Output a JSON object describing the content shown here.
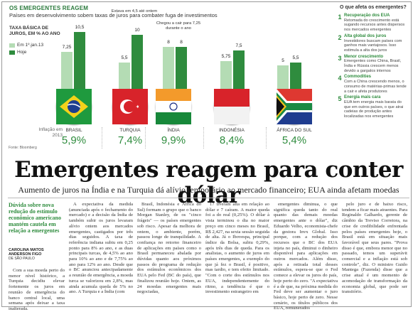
{
  "infographic": {
    "kicker": "OS EMERGENTES REAGEM",
    "subtitle": "Países em desenvolvimento sobem taxas de juros para combater fuga de investimentos",
    "ylabel": "TAXA BÁSICA DE JUROS, EM % AO ANO",
    "legend_before": "Em 1º.jan.13",
    "legend_after": "Hoje",
    "inflation_label": "Inflação em 2013",
    "source": "Fonte: Bloomberg",
    "colors": {
      "before": "#b4dcb4",
      "after": "#2f8c3e"
    }
  },
  "chart_data": {
    "type": "bar",
    "categories": [
      "BRASIL",
      "TURQUIA",
      "ÍNDIA",
      "INDONÉSIA",
      "ÁFRICA DO SUL"
    ],
    "series": [
      {
        "name": "Em 1º.jan.13",
        "values": [
          7.25,
          5.5,
          8,
          5.75,
          5
        ]
      },
      {
        "name": "Hoje",
        "values": [
          10.5,
          10,
          8,
          7.5,
          5.5
        ]
      }
    ],
    "labels_before": [
      "7,25",
      "5,5",
      "8",
      "5,75",
      "5"
    ],
    "labels_after": [
      "10,5",
      "10",
      "8",
      "7,5",
      "5,5"
    ],
    "inflation": [
      "5,9%",
      "7,4%",
      "9,9%",
      "8,4%",
      "5,4%"
    ],
    "callouts": [
      "",
      "Estava em 4,5 até ontem",
      "Chegou a cair para 7,25 durante o ano",
      "",
      ""
    ],
    "ylim": [
      0,
      11
    ]
  },
  "sidebar": {
    "title": "O que afeta os emergentes?",
    "items": [
      {
        "num": "1",
        "head": "Recuperação dos EUA",
        "text": "Retomada do crescimento está sugando recursos antes dispersos nos mercados emergentes"
      },
      {
        "num": "2",
        "head": "Alta global dos juros",
        "text": "Investidores buscam países com ganhos mais vantajosos. Isso estimula a alta dos juros"
      },
      {
        "num": "3",
        "head": "Menor crescimento",
        "text": "Emergentes como China, Brasil, Índia e Rússia crescem menos devido a gargalos internos"
      },
      {
        "num": "4",
        "head": "Commodities",
        "text": "Com a China crescendo menos, o consumo de matérias-primas tende a cair e afeta produtores"
      },
      {
        "num": "5",
        "head": "Energia mais cara",
        "text": "EUA tem energia mais barata do que em outros países, o que atrai cadeias de produção antes localizadas nos emergentes"
      }
    ]
  },
  "article": {
    "headline": "Emergentes reagem para conter dólar",
    "subhead": "Aumento de juros na Índia e na Turquia dá alívio temporário ao mercado financeiro; EUA ainda afetam moedas",
    "lead": "Dúvida sobre nova redução do estímulo econômico americano mantém cautela em relação a emergentes",
    "byline_name": "CAROLINA MATOS ANDERSON FIGO",
    "byline_place": "DE SÃO PAULO",
    "columns": [
      "Com a sua moeda perto do menor nível histórico, a Turquia decidiu elevar fortemente os juros em reunião de emergência do banco central local, uma semana após deixar a taxa inalterada.",
      "A expectativa da medida (anunciada após o fechamento do mercado) e a decisão da Índia de também subir os juros levaram alívio ontem aos mercados emergentes, castigados por três dias seguidos. A taxa de referência indiana subiu em 0,25 ponto para 8% ao ano, e as duas principais turcas, de 4,5% ao ano para 10% ao ano e de 7,75% ao ano para 12% ao ano. Desde que o BC anunciou antecipadamente a reunião de emergência, a moeda turca se valorizou em 2,8%, mas ainda acumula queda de 5% no ano. A Turquia e a Índia (com",
      "Brasil, Indonésia e África do Sul) formam o grupo que o banco Morgan Stanley, de os \"cinco frágeis\" — os países emergentes sob risco. Apesar da melhora de ontem, o ambiente, porém, passou longe de tranquilidade. A confiança no retorno financeiro de aplicações em países como o Brasil permaneceu abalada por dúvidas quanto aos próximos passos do programa de redução dos estímulos econômicos dos EUA pelo Fed (BC do país), que finalizou reunião hoje. Ontem, as 24 moedas emergentes mais negociadas,",
      "17 tiveram alta em relação ao dólar e 7 caíram. A maior queda foi a do real (0,25%). O dólar à vista terminou o dia no maior preço em cinco meses no Brasil, R$ 2,427, na sexta sessão seguida de alta. Já o Ibovespa, principal índice da Bolsa, subiu 0,29%, após três dias de queda. Para os analistas, o aumento de juros em países emergentes, a exemplo do que já fez o Brasil, é positivo, mas tardio, e tem efeito limitado. \"Com o corte dos estímulos nos EUA, independentemente do ritmo, a tendência é que o investimento estrangeiro em",
      "emergentes diminua, o que significa queda tanto do real quanto das demais moedas emergentes ante o dólar\", diz Eduardo Velho, economista-chefe da gestora Invx Global. Isso porque, com a redução dos recursos que o BC dos EUA injeta no país, diminui o dinheiro disponível para aplicações em outros mercados. Além disso, após a retirada total desses estímulos, espera-se que o Fed comece a elevar os juros do país, hoje perto do zero. \"A expectativa é a de que, na próxima medida do Fed deve ser aumentar o juro básico, hoje perto de zero. Nesse cenário, os títulos públicos dos EUA, remunerados",
      "pelo juro e de baixo risco, tendem a ficar mais atraentes. Para Reginaldo Galhardo, gerente de câmbio da Treviso Corretora, na crise de credibilidade enfrentada pelos países emergentes hoje, o Brasil está em situação mais favorável que seus pares. \"Prova disso é que, embora menor que no passado, temos um superávit comercial e a inflação está sob controle\", diz. O ministro Guido Mantega (Fazenda) disse que a crise atual é um momento de acomodação de transformação da economia global, que pode ser transitório."
    ]
  }
}
